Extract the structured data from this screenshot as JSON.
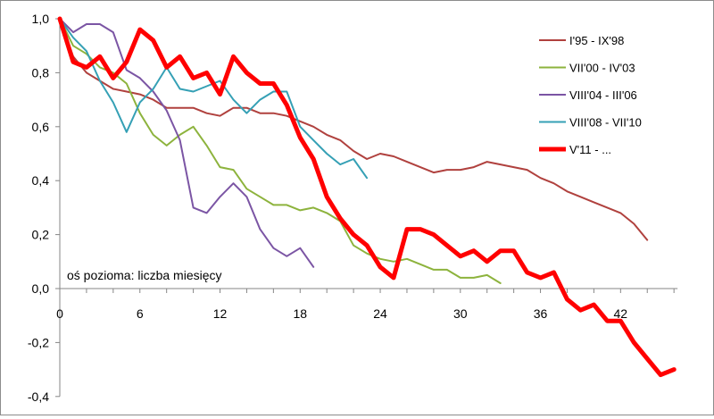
{
  "chart_data": {
    "type": "line",
    "title": "",
    "xlabel": "",
    "ylabel": "",
    "annotation": "oś pozioma: liczba miesięcy",
    "xlim": [
      0,
      46
    ],
    "ylim": [
      -0.4,
      1.0
    ],
    "x_ticks": [
      0,
      6,
      12,
      18,
      24,
      30,
      36,
      42
    ],
    "x_tick_labels": [
      "0",
      "6",
      "12",
      "18",
      "24",
      "30",
      "36",
      "42"
    ],
    "y_ticks": [
      1.0,
      0.8,
      0.6,
      0.4,
      0.2,
      0.0,
      -0.2,
      -0.4
    ],
    "y_tick_labels": [
      "1,0",
      "0,8",
      "0,6",
      "0,4",
      "0,2",
      "0,0",
      "-0,2",
      "-0,4"
    ],
    "grid": false,
    "legend_position": "top-right",
    "series": [
      {
        "name": "I'95 - IX'98",
        "color": "#b0413e",
        "width": 2,
        "values": [
          1.0,
          0.86,
          0.8,
          0.77,
          0.74,
          0.73,
          0.72,
          0.7,
          0.67,
          0.67,
          0.67,
          0.65,
          0.64,
          0.67,
          0.67,
          0.65,
          0.65,
          0.64,
          0.62,
          0.6,
          0.57,
          0.55,
          0.51,
          0.48,
          0.5,
          0.49,
          0.47,
          0.45,
          0.43,
          0.44,
          0.44,
          0.45,
          0.47,
          0.46,
          0.45,
          0.44,
          0.41,
          0.39,
          0.36,
          0.34,
          0.32,
          0.3,
          0.28,
          0.24,
          0.18
        ]
      },
      {
        "name": "VII'00 - IV'03",
        "color": "#8db33d",
        "width": 2,
        "values": [
          1.0,
          0.9,
          0.87,
          0.82,
          0.8,
          0.76,
          0.65,
          0.57,
          0.53,
          0.57,
          0.6,
          0.53,
          0.45,
          0.44,
          0.37,
          0.34,
          0.31,
          0.31,
          0.29,
          0.3,
          0.28,
          0.25,
          0.16,
          0.13,
          0.11,
          0.1,
          0.11,
          0.09,
          0.07,
          0.07,
          0.04,
          0.04,
          0.05,
          0.02
        ]
      },
      {
        "name": "VIII'04 - III'06",
        "color": "#7b55a4",
        "width": 2,
        "values": [
          1.0,
          0.95,
          0.98,
          0.98,
          0.95,
          0.81,
          0.78,
          0.73,
          0.66,
          0.55,
          0.3,
          0.28,
          0.34,
          0.39,
          0.34,
          0.22,
          0.15,
          0.12,
          0.15,
          0.08
        ]
      },
      {
        "name": "VIII'08 - VII'10",
        "color": "#35a0b5",
        "width": 2,
        "values": [
          1.0,
          0.93,
          0.88,
          0.77,
          0.69,
          0.58,
          0.69,
          0.74,
          0.82,
          0.74,
          0.73,
          0.75,
          0.77,
          0.7,
          0.65,
          0.7,
          0.73,
          0.73,
          0.6,
          0.55,
          0.5,
          0.46,
          0.48,
          0.41
        ]
      },
      {
        "name": "V'11 - ...",
        "color": "#ff0000",
        "width": 5,
        "values": [
          1.0,
          0.84,
          0.82,
          0.86,
          0.78,
          0.84,
          0.96,
          0.92,
          0.82,
          0.86,
          0.78,
          0.8,
          0.72,
          0.86,
          0.8,
          0.76,
          0.76,
          0.68,
          0.56,
          0.48,
          0.34,
          0.26,
          0.2,
          0.16,
          0.08,
          0.04,
          0.22,
          0.22,
          0.2,
          0.16,
          0.12,
          0.14,
          0.1,
          0.14,
          0.14,
          0.06,
          0.04,
          0.06,
          -0.04,
          -0.08,
          -0.06,
          -0.12,
          -0.12,
          -0.2,
          -0.26,
          -0.32,
          -0.3
        ]
      }
    ]
  }
}
